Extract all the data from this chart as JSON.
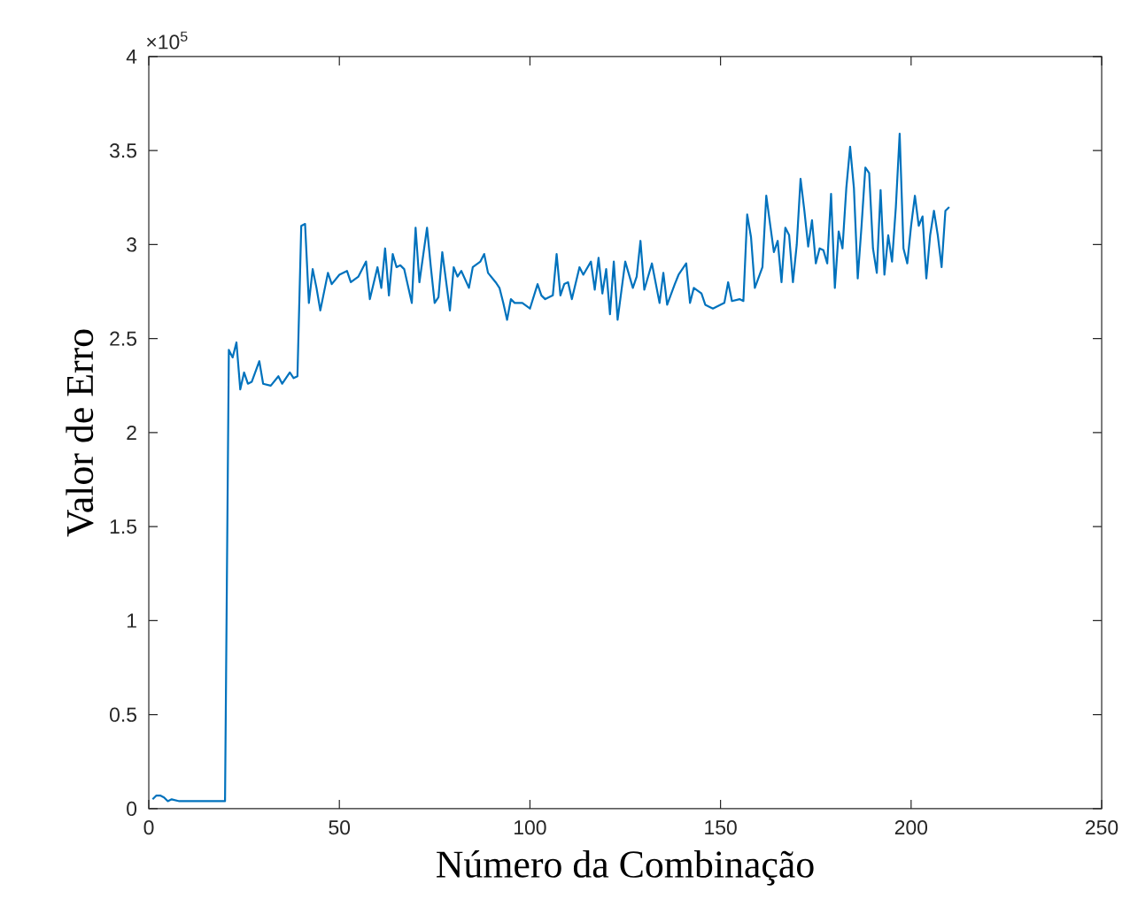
{
  "chart_data": {
    "type": "line",
    "xlabel": "Número da Combinação",
    "ylabel": "Valor de Erro",
    "annotations": [
      "×10$^{5}$"
    ],
    "series": [
      {
        "color": "#0072bd",
        "x": [
          1,
          2,
          3,
          4,
          5,
          6,
          8,
          10,
          14,
          20,
          21,
          22,
          23,
          24,
          25,
          26,
          27,
          29,
          30,
          32,
          34,
          35,
          37,
          38,
          39,
          40,
          41,
          42,
          43,
          44,
          45,
          47,
          48,
          50,
          52,
          53,
          55,
          57,
          58,
          60,
          61,
          62,
          63,
          64,
          65,
          66,
          67,
          69,
          70,
          71,
          73,
          74,
          75,
          76,
          77,
          79,
          80,
          81,
          82,
          84,
          85,
          87,
          88,
          89,
          91,
          92,
          93,
          94,
          95,
          96,
          98,
          100,
          102,
          103,
          104,
          106,
          107,
          108,
          109,
          110,
          111,
          113,
          114,
          116,
          117,
          118,
          119,
          120,
          121,
          122,
          123,
          125,
          126,
          127,
          128,
          129,
          130,
          132,
          134,
          135,
          136,
          138,
          139,
          141,
          142,
          143,
          145,
          146,
          148,
          150,
          151,
          152,
          153,
          155,
          156,
          157,
          158,
          159,
          161,
          162,
          164,
          165,
          166,
          167,
          168,
          169,
          170,
          171,
          172,
          173,
          174,
          175,
          176,
          177,
          178,
          179,
          180,
          181,
          182,
          183,
          184,
          185,
          186,
          187,
          188,
          189,
          190,
          191,
          192,
          193,
          194,
          195,
          196,
          197,
          198,
          199,
          200,
          201,
          202,
          203,
          204,
          205,
          206,
          207,
          208,
          209,
          210
        ],
        "values": [
          0.05,
          0.07,
          0.07,
          0.06,
          0.04,
          0.05,
          0.04,
          0.04,
          0.04,
          0.04,
          2.44,
          2.4,
          2.48,
          2.23,
          2.32,
          2.26,
          2.27,
          2.38,
          2.26,
          2.25,
          2.3,
          2.26,
          2.32,
          2.29,
          2.3,
          3.1,
          3.11,
          2.69,
          2.87,
          2.77,
          2.65,
          2.85,
          2.79,
          2.84,
          2.86,
          2.8,
          2.83,
          2.91,
          2.71,
          2.88,
          2.77,
          2.98,
          2.73,
          2.95,
          2.88,
          2.89,
          2.87,
          2.69,
          3.09,
          2.8,
          3.09,
          2.88,
          2.69,
          2.72,
          2.96,
          2.65,
          2.88,
          2.83,
          2.86,
          2.77,
          2.88,
          2.91,
          2.95,
          2.85,
          2.8,
          2.77,
          2.69,
          2.6,
          2.71,
          2.69,
          2.69,
          2.66,
          2.79,
          2.73,
          2.71,
          2.73,
          2.95,
          2.73,
          2.79,
          2.8,
          2.71,
          2.88,
          2.84,
          2.91,
          2.76,
          2.93,
          2.74,
          2.87,
          2.63,
          2.91,
          2.6,
          2.91,
          2.84,
          2.77,
          2.83,
          3.02,
          2.76,
          2.9,
          2.69,
          2.85,
          2.68,
          2.79,
          2.84,
          2.9,
          2.69,
          2.77,
          2.74,
          2.68,
          2.66,
          2.68,
          2.69,
          2.8,
          2.7,
          2.71,
          2.7,
          3.16,
          3.04,
          2.77,
          2.88,
          3.26,
          2.96,
          3.02,
          2.8,
          3.09,
          3.05,
          2.8,
          3.0,
          3.35,
          3.18,
          2.99,
          3.13,
          2.9,
          2.98,
          2.97,
          2.9,
          3.27,
          2.77,
          3.07,
          2.98,
          3.3,
          3.52,
          3.3,
          2.82,
          3.1,
          3.41,
          3.38,
          2.98,
          2.85,
          3.29,
          2.84,
          3.05,
          2.91,
          3.2,
          3.59,
          2.98,
          2.9,
          3.1,
          3.26,
          3.1,
          3.15,
          2.82,
          3.05,
          3.18,
          3.05,
          2.88,
          3.18,
          3.2
        ]
      }
    ],
    "xlim": [
      0,
      250
    ],
    "xticks": [
      0,
      50,
      100,
      150,
      200,
      250
    ],
    "ylim": [
      0,
      4
    ],
    "yticks": [
      0,
      0.5,
      1,
      1.5,
      2,
      2.5,
      3,
      3.5,
      4
    ],
    "marker": "none",
    "line_style": "solid"
  }
}
